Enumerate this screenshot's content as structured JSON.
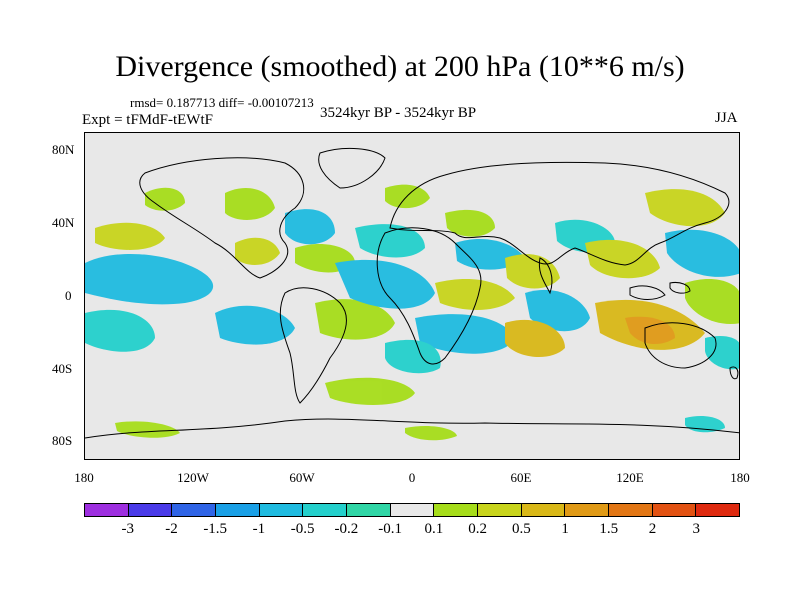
{
  "title": "Divergence (smoothed) at 200 hPa (10**6 m/s)",
  "stats": "rmsd= 0.187713 diff= -0.00107213",
  "expt": "Expt = tFMdF-tEWtF",
  "period": "3524kyr BP - 3524kyr BP",
  "season": "JJA",
  "y_ticks": [
    "80N",
    "40N",
    "0",
    "40S",
    "80S"
  ],
  "x_ticks": [
    "180",
    "120W",
    "60W",
    "0",
    "60E",
    "120E",
    "180"
  ],
  "colorbar": {
    "colors": [
      "#9e2fe0",
      "#4a3be8",
      "#2f64e6",
      "#1aa0e6",
      "#1fbbe0",
      "#24d0cc",
      "#30d6a6",
      "#e8e8e8",
      "#a6dd1a",
      "#c8d41c",
      "#d9b818",
      "#e09a16",
      "#e27614",
      "#e25212",
      "#df2a10"
    ],
    "labels": [
      "-3",
      "-2",
      "-1.5",
      "-1",
      "-0.5",
      "-0.2",
      "-0.1",
      "0.1",
      "0.2",
      "0.5",
      "1",
      "1.5",
      "2",
      "3"
    ]
  },
  "map_legend_colors": {
    "light_blue": "#1fbbe0",
    "cyan": "#24d0cc",
    "blue": "#1aa0e6",
    "yellow_green": "#a6dd1a",
    "olive": "#c8d41c",
    "gold": "#d9b818",
    "orange": "#e09a16"
  }
}
